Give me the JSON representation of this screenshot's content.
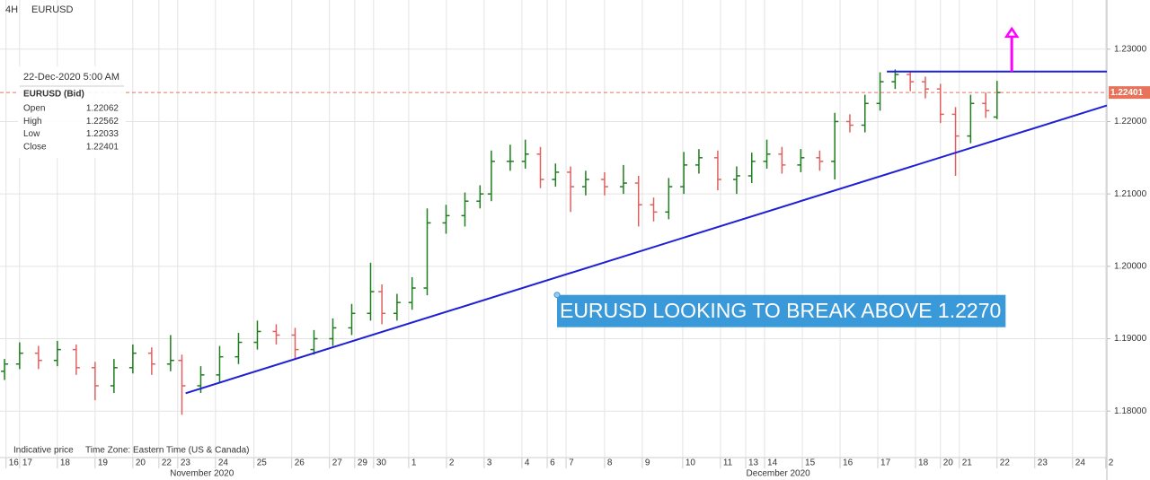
{
  "header": {
    "timeframe": "4H",
    "symbol": "EURUSD"
  },
  "info_panel": {
    "datetime": "22-Dec-2020 5:00 AM",
    "instrument": "EURUSD (Bid)",
    "rows": [
      {
        "label": "Open",
        "value": 1.22062
      },
      {
        "label": "High",
        "value": 1.22562
      },
      {
        "label": "Low",
        "value": 1.22033
      },
      {
        "label": "Close",
        "value": 1.22401
      }
    ]
  },
  "footer": {
    "note": "Indicative price",
    "timezone": "Time Zone: Eastern Time (US & Canada)"
  },
  "chart_data": {
    "type": "ohlc",
    "up_color": "#1e7d1e",
    "down_color": "#e06060",
    "grid": true,
    "x": [
      0.6,
      1.0,
      1.5,
      2.0,
      2.5,
      3.0,
      3.5,
      4.0,
      4.5,
      5.0,
      5.3,
      5.8,
      6.3,
      6.8,
      7.3,
      7.8,
      8.3,
      8.8,
      9.3,
      9.8,
      10.3,
      10.6,
      11.0,
      11.4,
      11.8,
      12.3,
      12.8,
      13.2,
      13.5,
      14.0,
      14.4,
      14.8,
      15.2,
      15.6,
      16.0,
      16.5,
      17.0,
      17.4,
      17.8,
      18.2,
      18.6,
      19.0,
      19.5,
      20.0,
      20.4,
      20.8,
      21.2,
      21.7,
      22.2,
      22.6,
      23.0,
      23.4,
      23.8,
      24.2,
      24.6,
      25.0,
      25.4,
      25.8,
      26.2,
      26.6,
      26.9
    ],
    "open": [
      1.1855,
      1.1865,
      1.188,
      1.187,
      1.1885,
      1.186,
      1.1835,
      1.186,
      1.188,
      1.1865,
      1.187,
      1.1835,
      1.185,
      1.1875,
      1.1895,
      1.191,
      1.1905,
      1.1885,
      1.19,
      1.1915,
      1.1935,
      1.1965,
      1.1935,
      1.195,
      1.197,
      1.206,
      1.207,
      1.209,
      1.21,
      1.2145,
      1.2145,
      1.2155,
      1.212,
      1.213,
      1.211,
      1.212,
      1.211,
      1.2115,
      1.2085,
      1.2075,
      1.211,
      1.214,
      1.215,
      1.212,
      1.2125,
      1.2145,
      1.2155,
      1.214,
      1.215,
      1.2145,
      1.22,
      1.2195,
      1.2225,
      1.2255,
      1.2265,
      1.2255,
      1.2245,
      1.221,
      1.218,
      1.2225,
      1.22062
    ],
    "high": [
      1.1872,
      1.1895,
      1.189,
      1.1897,
      1.1892,
      1.1868,
      1.1872,
      1.1892,
      1.1888,
      1.1905,
      1.1878,
      1.1862,
      1.189,
      1.1908,
      1.1925,
      1.192,
      1.1915,
      1.1912,
      1.1928,
      1.1948,
      1.2005,
      1.1975,
      1.1962,
      1.1985,
      1.208,
      1.2085,
      1.2102,
      1.2112,
      1.216,
      1.2168,
      1.2175,
      1.2165,
      1.2142,
      1.2138,
      1.2132,
      1.213,
      1.214,
      1.2125,
      1.2095,
      1.2122,
      1.2158,
      1.2162,
      1.216,
      1.2138,
      1.2157,
      1.2175,
      1.2165,
      1.2162,
      1.216,
      1.2212,
      1.221,
      1.2237,
      1.2268,
      1.2272,
      1.227,
      1.2262,
      1.2252,
      1.222,
      1.2237,
      1.224,
      1.22562
    ],
    "low": [
      1.1843,
      1.1858,
      1.1858,
      1.1862,
      1.185,
      1.1815,
      1.1825,
      1.1852,
      1.185,
      1.1855,
      1.1795,
      1.1825,
      1.184,
      1.1865,
      1.1885,
      1.1892,
      1.1872,
      1.1878,
      1.189,
      1.1905,
      1.1925,
      1.192,
      1.1925,
      1.194,
      1.196,
      1.2045,
      1.2055,
      1.208,
      1.209,
      1.2132,
      1.2135,
      1.2108,
      1.211,
      1.2075,
      1.2098,
      1.2098,
      1.21,
      1.2055,
      1.2062,
      1.2065,
      1.21,
      1.2128,
      1.2105,
      1.21,
      1.2115,
      1.2135,
      1.2128,
      1.213,
      1.2132,
      1.212,
      1.2185,
      1.2185,
      1.2215,
      1.2245,
      1.2242,
      1.2232,
      1.2198,
      1.2125,
      1.217,
      1.2205,
      1.22033
    ],
    "close": [
      1.1865,
      1.188,
      1.187,
      1.1885,
      1.186,
      1.1835,
      1.186,
      1.188,
      1.1865,
      1.187,
      1.1835,
      1.185,
      1.1875,
      1.1895,
      1.191,
      1.1905,
      1.1885,
      1.19,
      1.1915,
      1.1935,
      1.1965,
      1.1935,
      1.195,
      1.197,
      1.206,
      1.207,
      1.209,
      1.21,
      1.2145,
      1.2145,
      1.2155,
      1.212,
      1.213,
      1.211,
      1.212,
      1.211,
      1.2115,
      1.2085,
      1.2075,
      1.211,
      1.214,
      1.215,
      1.212,
      1.2125,
      1.2145,
      1.2155,
      1.214,
      1.215,
      1.2145,
      1.22,
      1.2195,
      1.2225,
      1.2255,
      1.2265,
      1.2255,
      1.2245,
      1.221,
      1.218,
      1.2225,
      1.2215,
      1.22401
    ],
    "xlim": [
      0.48,
      29.81
    ],
    "ylim": [
      1.17358,
      1.23679
    ],
    "xticks": [
      {
        "value": 0.64,
        "label": "16"
      },
      {
        "value": 1,
        "label": "17"
      },
      {
        "value": 2,
        "label": "18"
      },
      {
        "value": 3,
        "label": "19"
      },
      {
        "value": 4,
        "label": "20"
      },
      {
        "value": 4.69,
        "label": "22"
      },
      {
        "value": 5.19,
        "label": "23"
      },
      {
        "value": 6.19,
        "label": "24"
      },
      {
        "value": 7.21,
        "label": "25"
      },
      {
        "value": 8.21,
        "label": "26"
      },
      {
        "value": 9.21,
        "label": "27"
      },
      {
        "value": 9.88,
        "label": "29"
      },
      {
        "value": 10.38,
        "label": "30"
      },
      {
        "value": 11.31,
        "label": "1"
      },
      {
        "value": 12.31,
        "label": "2"
      },
      {
        "value": 13.31,
        "label": "3"
      },
      {
        "value": 14.31,
        "label": "4"
      },
      {
        "value": 14.98,
        "label": "6"
      },
      {
        "value": 15.48,
        "label": "7"
      },
      {
        "value": 16.5,
        "label": "8"
      },
      {
        "value": 17.5,
        "label": "9"
      },
      {
        "value": 18.57,
        "label": "10"
      },
      {
        "value": 19.57,
        "label": "11"
      },
      {
        "value": 20.24,
        "label": "13"
      },
      {
        "value": 20.74,
        "label": "14"
      },
      {
        "value": 21.74,
        "label": "15"
      },
      {
        "value": 22.74,
        "label": "16"
      },
      {
        "value": 23.74,
        "label": "17"
      },
      {
        "value": 24.74,
        "label": "18"
      },
      {
        "value": 25.4,
        "label": "20"
      },
      {
        "value": 25.9,
        "label": "21"
      },
      {
        "value": 26.9,
        "label": "22"
      },
      {
        "value": 27.9,
        "label": "23"
      },
      {
        "value": 28.9,
        "label": "24"
      },
      {
        "value": 29.78,
        "label": "2"
      }
    ],
    "month_labels": [
      {
        "value": 5.83,
        "label": "November 2020"
      },
      {
        "value": 21.1,
        "label": "December 2020"
      }
    ],
    "yticks": [
      {
        "value": 1.18,
        "label": "1.18000"
      },
      {
        "value": 1.19,
        "label": "1.19000"
      },
      {
        "value": 1.2,
        "label": "1.20000"
      },
      {
        "value": 1.21,
        "label": "1.21000"
      },
      {
        "value": 1.22,
        "label": "1.22000"
      },
      {
        "value": 1.23,
        "label": "1.23000"
      }
    ],
    "current_price": {
      "value": 1.22401,
      "color": "#e8735a"
    },
    "trendline": {
      "x": [
        5.4,
        29.81
      ],
      "y": [
        1.18247,
        1.22222
      ],
      "color": "#1f1fd6"
    },
    "resistance": {
      "x": [
        23.98,
        29.81
      ],
      "y": [
        1.22691,
        1.22691
      ],
      "color": "#1f1fd6"
    },
    "arrow": {
      "x": [
        27.29,
        27.29
      ],
      "y": [
        1.22691,
        1.23284
      ],
      "color": "#ff00ff"
    },
    "annotation": {
      "text": "EURUSD LOOKING TO BREAK ABOVE 1.2270",
      "x": 15.24,
      "y": 1.19605,
      "color": "#3a9ad9"
    }
  }
}
